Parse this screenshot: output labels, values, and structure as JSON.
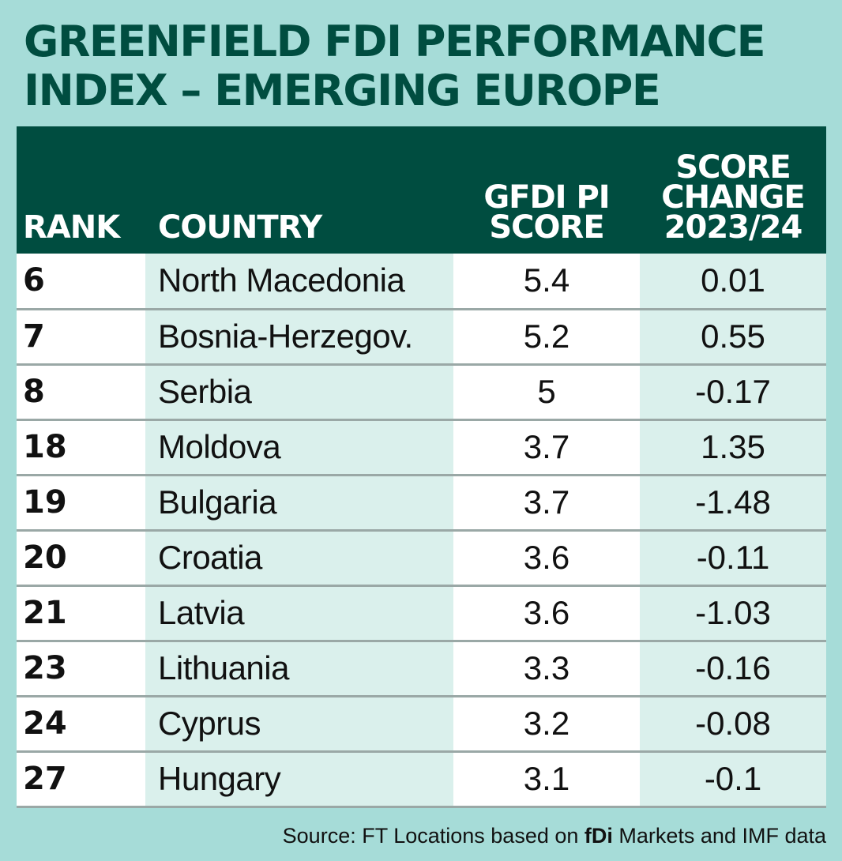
{
  "title_line1": "GREENFIELD FDI PERFORMANCE",
  "title_line2": "INDEX – EMERGING EUROPE",
  "colors": {
    "background": "#a6dcd8",
    "header_bg": "#004d40",
    "title": "#004d40",
    "alt_column": "#daf0ec",
    "row_divider": "#9aa8a6"
  },
  "chart_data": {
    "type": "table",
    "title": "GREENFIELD FDI PERFORMANCE INDEX – EMERGING EUROPE",
    "columns": {
      "rank": "RANK",
      "country": "COUNTRY",
      "score_l1": "GFDI PI",
      "score_l2": "SCORE",
      "change_l1": "SCORE",
      "change_l2": "CHANGE",
      "change_l3": "2023/24"
    },
    "rows": [
      {
        "rank": "6",
        "country": "North Macedonia",
        "score": "5.4",
        "change": "0.01"
      },
      {
        "rank": "7",
        "country": "Bosnia-Herzegov.",
        "score": "5.2",
        "change": "0.55"
      },
      {
        "rank": "8",
        "country": "Serbia",
        "score": "5",
        "change": "-0.17"
      },
      {
        "rank": "18",
        "country": "Moldova",
        "score": "3.7",
        "change": "1.35"
      },
      {
        "rank": "19",
        "country": "Bulgaria",
        "score": "3.7",
        "change": "-1.48"
      },
      {
        "rank": "20",
        "country": "Croatia",
        "score": "3.6",
        "change": "-0.11"
      },
      {
        "rank": "21",
        "country": "Latvia",
        "score": "3.6",
        "change": "-1.03"
      },
      {
        "rank": "23",
        "country": "Lithuania",
        "score": "3.3",
        "change": "-0.16"
      },
      {
        "rank": "24",
        "country": "Cyprus",
        "score": "3.2",
        "change": "-0.08"
      },
      {
        "rank": "27",
        "country": "Hungary",
        "score": "3.1",
        "change": "-0.1"
      }
    ]
  },
  "source": {
    "prefix": "Source: FT Locations based on ",
    "brand": "fDi",
    "suffix": " Markets and IMF data"
  }
}
